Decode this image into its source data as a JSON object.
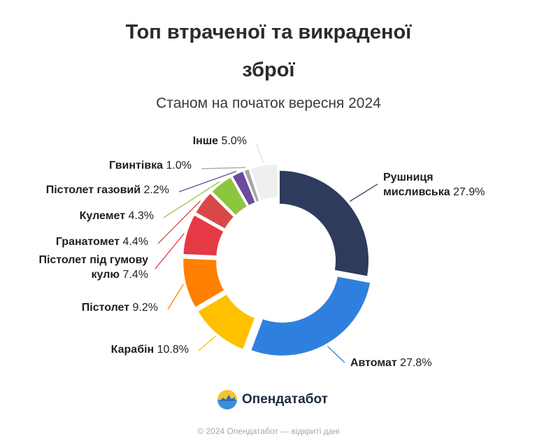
{
  "header": {
    "title_line1": "Топ втраченої та викраденої",
    "title_line2": "зброї",
    "subtitle": "Станом на початок вересня 2024"
  },
  "chart_data": {
    "type": "pie",
    "donut": true,
    "title": "Топ втраченої та викраденої зброї",
    "subtitle": "Станом на початок вересня 2024",
    "unit": "%",
    "slices": [
      {
        "label": "Рушниця мисливська",
        "value": 27.9,
        "color": "#2e3b5c"
      },
      {
        "label": "Автомат",
        "value": 27.8,
        "color": "#2f80de"
      },
      {
        "label": "Карабін",
        "value": 10.8,
        "color": "#ffc000"
      },
      {
        "label": "Пістолет",
        "value": 9.2,
        "color": "#ff8000"
      },
      {
        "label": "Пістолет під гумову кулю",
        "value": 7.4,
        "color": "#e63946"
      },
      {
        "label": "Гранатомет",
        "value": 4.4,
        "color": "#d94848"
      },
      {
        "label": "Кулемет",
        "value": 4.3,
        "color": "#8cc63f"
      },
      {
        "label": "Пістолет газовий",
        "value": 2.2,
        "color": "#6c4a9e"
      },
      {
        "label": "Гвинтівка",
        "value": 1.0,
        "color": "#a6a6a6"
      },
      {
        "label": "Інше",
        "value": 5.0,
        "color": "#efefef"
      }
    ]
  },
  "brand": {
    "name": "Опендатабот",
    "logo_icon": "opendatabot-logo-icon"
  },
  "footer": {
    "text": "© 2024 Опендатабот — відкриті дані"
  }
}
